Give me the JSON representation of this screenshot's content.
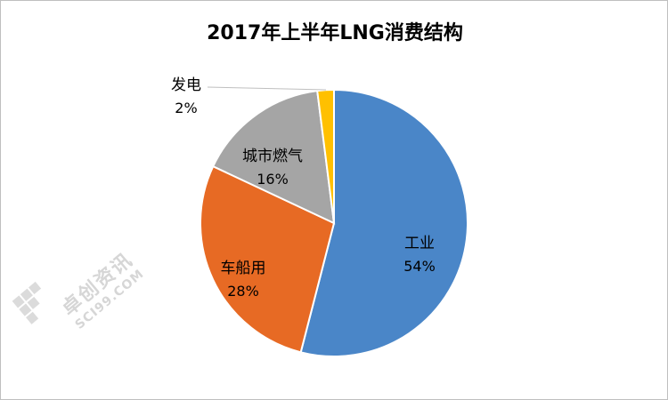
{
  "chart_data": {
    "type": "pie",
    "title": "2017年上半年LNG消费结构",
    "slices": [
      {
        "label": "工业",
        "value": 54,
        "display": "54%",
        "color": "#4a86c8"
      },
      {
        "label": "车船用",
        "value": 28,
        "display": "28%",
        "color": "#e76a24"
      },
      {
        "label": "城市燃气",
        "value": 16,
        "display": "16%",
        "color": "#a5a5a5"
      },
      {
        "label": "发电",
        "value": 2,
        "display": "2%",
        "color": "#ffc000"
      }
    ],
    "start_angle": "12 o'clock",
    "direction": "clockwise"
  },
  "watermark": {
    "cn": "卓创资讯",
    "en": "SCI99.COM"
  }
}
